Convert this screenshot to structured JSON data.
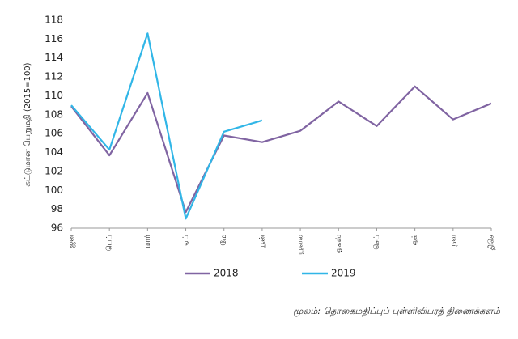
{
  "chart_data": {
    "type": "line",
    "y_label": "கட்டுமான பெறுமதி (2015=100)",
    "categories": [
      "ஜன",
      "பெப்",
      "மார்",
      "ஏப்",
      "மே",
      "யூன்",
      "யூலை",
      "ஓகஸ்",
      "செப்",
      "ஒக்",
      "நவ",
      "திசெ"
    ],
    "series": [
      {
        "name": "2018",
        "color": "#8064a2",
        "values": [
          108.9,
          103.7,
          110.3,
          97.7,
          105.8,
          105.1,
          106.3,
          109.4,
          106.8,
          111.0,
          107.5,
          109.2
        ]
      },
      {
        "name": "2019",
        "color": "#31b6e7",
        "values": [
          109.0,
          104.3,
          116.6,
          97.0,
          106.2,
          107.4,
          null,
          null,
          null,
          null,
          null,
          null
        ]
      }
    ],
    "ylim": [
      96,
      118
    ],
    "yticks": [
      96,
      98,
      100,
      102,
      104,
      106,
      108,
      110,
      112,
      114,
      116,
      118
    ],
    "grid": false,
    "legend": "bottom",
    "source": "மூலம்: தொகைமதிப்புப் புள்ளிவிபரத் திணைக்களம்"
  }
}
